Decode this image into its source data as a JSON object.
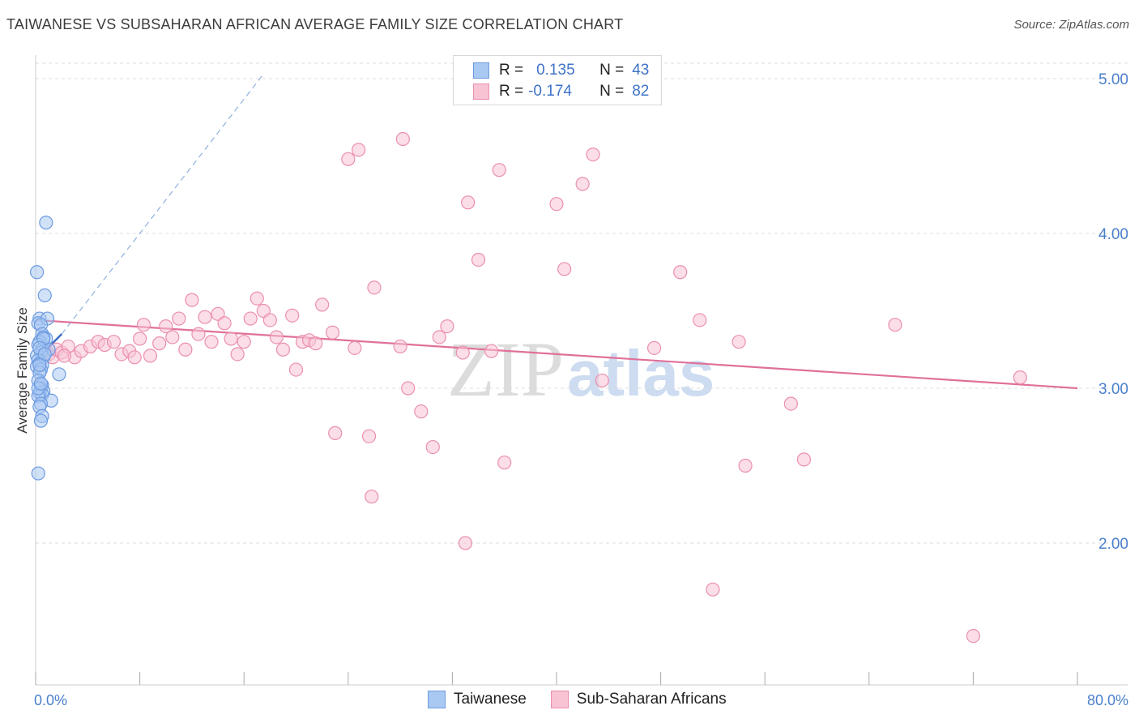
{
  "header": {
    "title": "TAIWANESE VS SUBSAHARAN AFRICAN AVERAGE FAMILY SIZE CORRELATION CHART",
    "source": "Source: ZipAtlas.com"
  },
  "watermark": {
    "zip": "ZIP",
    "atlas": "atlas"
  },
  "legend": {
    "rows": [
      {
        "r_label": "R =",
        "r_value": "0.135",
        "n_label": "N =",
        "n_value": "43",
        "color": "#a9c8f2",
        "border": "#6d9be0"
      },
      {
        "r_label": "R =",
        "r_value": "-0.174",
        "n_label": "N =",
        "n_value": "82",
        "color": "#f8c3d3",
        "border": "#eb8fae"
      }
    ]
  },
  "bottom_legend": {
    "items": [
      {
        "label": "Taiwanese",
        "color": "#a9c8f2",
        "border": "#6d9be0"
      },
      {
        "label": "Sub-Saharan Africans",
        "color": "#f8c3d3",
        "border": "#eb8fae"
      }
    ]
  },
  "chart_data": {
    "type": "scatter",
    "title": "TAIWANESE VS SUBSAHARAN AFRICAN AVERAGE FAMILY SIZE CORRELATION CHART",
    "xlabel": "",
    "ylabel": "Average Family Size",
    "xlim": [
      0,
      80
    ],
    "ylim": [
      1.0,
      5.25
    ],
    "x_ticks_labels": [
      "0.0%",
      "80.0%"
    ],
    "y_ticks": [
      2.0,
      3.0,
      4.0,
      5.0
    ],
    "y_tick_labels": [
      "2.00",
      "3.00",
      "4.00",
      "5.00"
    ],
    "grid": true,
    "legend_position": "top-center",
    "series": [
      {
        "name": "Taiwanese",
        "color": "#6d9be0",
        "fill": "#a9c8f2",
        "points": [
          [
            0.1,
            3.75
          ],
          [
            0.8,
            4.07
          ],
          [
            0.7,
            3.6
          ],
          [
            0.3,
            3.45
          ],
          [
            0.2,
            3.42
          ],
          [
            0.9,
            3.45
          ],
          [
            0.4,
            3.41
          ],
          [
            0.5,
            3.35
          ],
          [
            0.6,
            3.33
          ],
          [
            0.8,
            3.32
          ],
          [
            0.3,
            3.3
          ],
          [
            0.2,
            3.28
          ],
          [
            0.5,
            3.25
          ],
          [
            1.0,
            3.25
          ],
          [
            0.4,
            3.23
          ],
          [
            0.1,
            3.21
          ],
          [
            0.6,
            3.2
          ],
          [
            0.2,
            3.18
          ],
          [
            0.3,
            3.16
          ],
          [
            0.5,
            3.15
          ],
          [
            0.1,
            3.14
          ],
          [
            0.4,
            3.12
          ],
          [
            0.3,
            3.1
          ],
          [
            1.8,
            3.09
          ],
          [
            0.2,
            3.05
          ],
          [
            0.5,
            3.02
          ],
          [
            0.4,
            3.0
          ],
          [
            0.6,
            2.98
          ],
          [
            0.3,
            2.97
          ],
          [
            0.5,
            2.96
          ],
          [
            0.2,
            2.95
          ],
          [
            1.2,
            2.92
          ],
          [
            0.4,
            2.9
          ],
          [
            0.3,
            2.88
          ],
          [
            0.5,
            2.82
          ],
          [
            0.4,
            2.79
          ],
          [
            0.2,
            2.45
          ],
          [
            0.6,
            3.32
          ],
          [
            0.3,
            3.26
          ],
          [
            0.7,
            3.22
          ],
          [
            0.2,
            3.0
          ],
          [
            0.4,
            3.03
          ],
          [
            0.3,
            3.15
          ]
        ]
      },
      {
        "name": "Sub-Saharan Africans",
        "color": "#eb8fae",
        "fill": "#f8c3d3",
        "points": [
          [
            1.0,
            3.22
          ],
          [
            1.3,
            3.2
          ],
          [
            1.6,
            3.25
          ],
          [
            2.0,
            3.23
          ],
          [
            2.5,
            3.27
          ],
          [
            3.0,
            3.2
          ],
          [
            3.5,
            3.24
          ],
          [
            4.2,
            3.27
          ],
          [
            4.8,
            3.3
          ],
          [
            5.3,
            3.28
          ],
          [
            6.0,
            3.3
          ],
          [
            6.6,
            3.22
          ],
          [
            7.2,
            3.24
          ],
          [
            8.0,
            3.32
          ],
          [
            8.3,
            3.41
          ],
          [
            8.8,
            3.21
          ],
          [
            9.5,
            3.29
          ],
          [
            10.0,
            3.4
          ],
          [
            10.5,
            3.33
          ],
          [
            11.0,
            3.45
          ],
          [
            11.5,
            3.25
          ],
          [
            12.0,
            3.57
          ],
          [
            12.5,
            3.35
          ],
          [
            13.0,
            3.46
          ],
          [
            13.5,
            3.3
          ],
          [
            14.0,
            3.48
          ],
          [
            14.5,
            3.42
          ],
          [
            15.0,
            3.32
          ],
          [
            15.5,
            3.22
          ],
          [
            16.0,
            3.3
          ],
          [
            16.5,
            3.45
          ],
          [
            17.0,
            3.58
          ],
          [
            17.5,
            3.5
          ],
          [
            18.0,
            3.44
          ],
          [
            18.5,
            3.33
          ],
          [
            19.0,
            3.25
          ],
          [
            19.7,
            3.47
          ],
          [
            20.0,
            3.12
          ],
          [
            20.5,
            3.3
          ],
          [
            21.0,
            3.31
          ],
          [
            21.5,
            3.29
          ],
          [
            22.0,
            3.54
          ],
          [
            22.8,
            3.36
          ],
          [
            23.0,
            2.71
          ],
          [
            24.0,
            4.48
          ],
          [
            24.8,
            4.54
          ],
          [
            24.5,
            3.26
          ],
          [
            25.6,
            2.69
          ],
          [
            25.8,
            2.3
          ],
          [
            26.0,
            3.65
          ],
          [
            28.0,
            3.27
          ],
          [
            28.2,
            4.61
          ],
          [
            28.6,
            3.0
          ],
          [
            29.6,
            2.85
          ],
          [
            30.5,
            2.62
          ],
          [
            31.0,
            3.33
          ],
          [
            31.6,
            3.4
          ],
          [
            32.8,
            3.23
          ],
          [
            33.0,
            2.0
          ],
          [
            33.2,
            4.2
          ],
          [
            34.0,
            3.83
          ],
          [
            35.0,
            3.24
          ],
          [
            35.6,
            4.41
          ],
          [
            36.0,
            2.52
          ],
          [
            40.0,
            4.19
          ],
          [
            40.6,
            3.77
          ],
          [
            42.0,
            4.32
          ],
          [
            42.8,
            4.51
          ],
          [
            43.5,
            3.05
          ],
          [
            47.5,
            3.26
          ],
          [
            49.5,
            3.75
          ],
          [
            51.0,
            3.44
          ],
          [
            52.0,
            1.7
          ],
          [
            54.0,
            3.3
          ],
          [
            54.5,
            2.5
          ],
          [
            58.0,
            2.9
          ],
          [
            59.0,
            2.54
          ],
          [
            66.0,
            3.41
          ],
          [
            72.0,
            1.4
          ],
          [
            75.6,
            3.07
          ],
          [
            2.2,
            3.21
          ],
          [
            7.6,
            3.2
          ]
        ]
      }
    ],
    "trend_lines": [
      {
        "series": "Taiwanese",
        "x": [
          0.1,
          2.0
        ],
        "y": [
          3.19,
          3.35
        ],
        "dashed_extension_to": [
          17.5,
          5.03
        ]
      },
      {
        "series": "Sub-Saharan Africans",
        "x": [
          0.1,
          80.0
        ],
        "y": [
          3.44,
          3.0
        ]
      }
    ]
  }
}
